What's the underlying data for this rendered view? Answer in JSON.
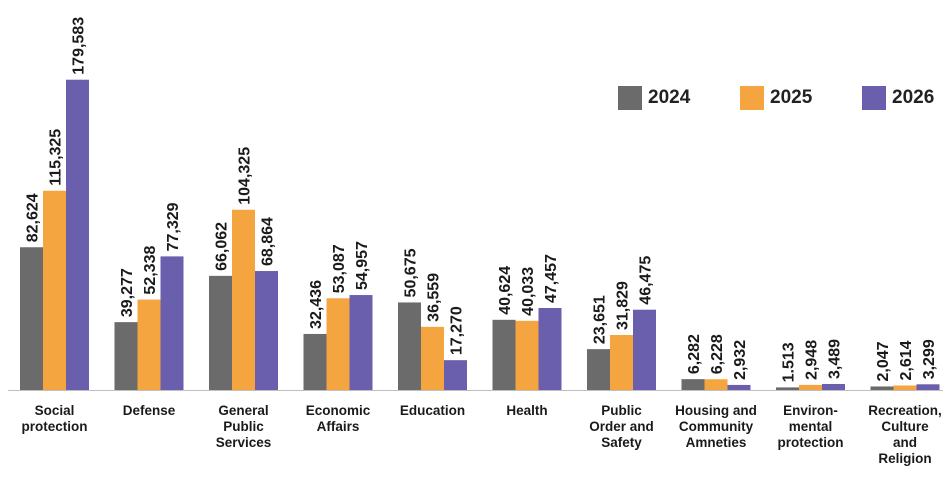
{
  "chart_data": {
    "type": "bar",
    "categories": [
      [
        "Social",
        "protection"
      ],
      [
        "Defense"
      ],
      [
        "General",
        "Public",
        "Services"
      ],
      [
        "Economic",
        "Affairs"
      ],
      [
        "Education"
      ],
      [
        "Health"
      ],
      [
        "Public",
        "Order and",
        "Safety"
      ],
      [
        "Housing and",
        "Community",
        "Amneties"
      ],
      [
        "Environ-",
        "mental",
        "protection"
      ],
      [
        "Recreation,",
        "Culture",
        "and",
        "Religion"
      ]
    ],
    "series": [
      {
        "name": "2024",
        "color": "#6b6b6b",
        "values": [
          82624,
          39277,
          66062,
          32436,
          50675,
          40624,
          23651,
          6282,
          1513,
          2047
        ],
        "labels": [
          "82,624",
          "39,277",
          "66,062",
          "32,436",
          "50,675",
          "40,624",
          "23,651",
          "6,282",
          "1.513",
          "2,047"
        ]
      },
      {
        "name": "2025",
        "color": "#f5a540",
        "values": [
          115325,
          52338,
          104325,
          53087,
          36559,
          40033,
          31829,
          6228,
          2948,
          2614
        ],
        "labels": [
          "115,325",
          "52,338",
          "104,325",
          "53,087",
          "36,559",
          "40,033",
          "31,829",
          "6,228",
          "2,948",
          "2,614"
        ]
      },
      {
        "name": "2026",
        "color": "#6a5fad",
        "values": [
          179583,
          77329,
          68864,
          54957,
          17270,
          47457,
          46475,
          2932,
          3489,
          3299
        ],
        "labels": [
          "179,583",
          "77,329",
          "68,864",
          "54,957",
          "17,270",
          "47,457",
          "46,475",
          "2,932",
          "3,489",
          "3,299"
        ]
      }
    ],
    "ylim": [
      0,
      180000
    ],
    "legend_position": "top-right",
    "grid": false
  }
}
